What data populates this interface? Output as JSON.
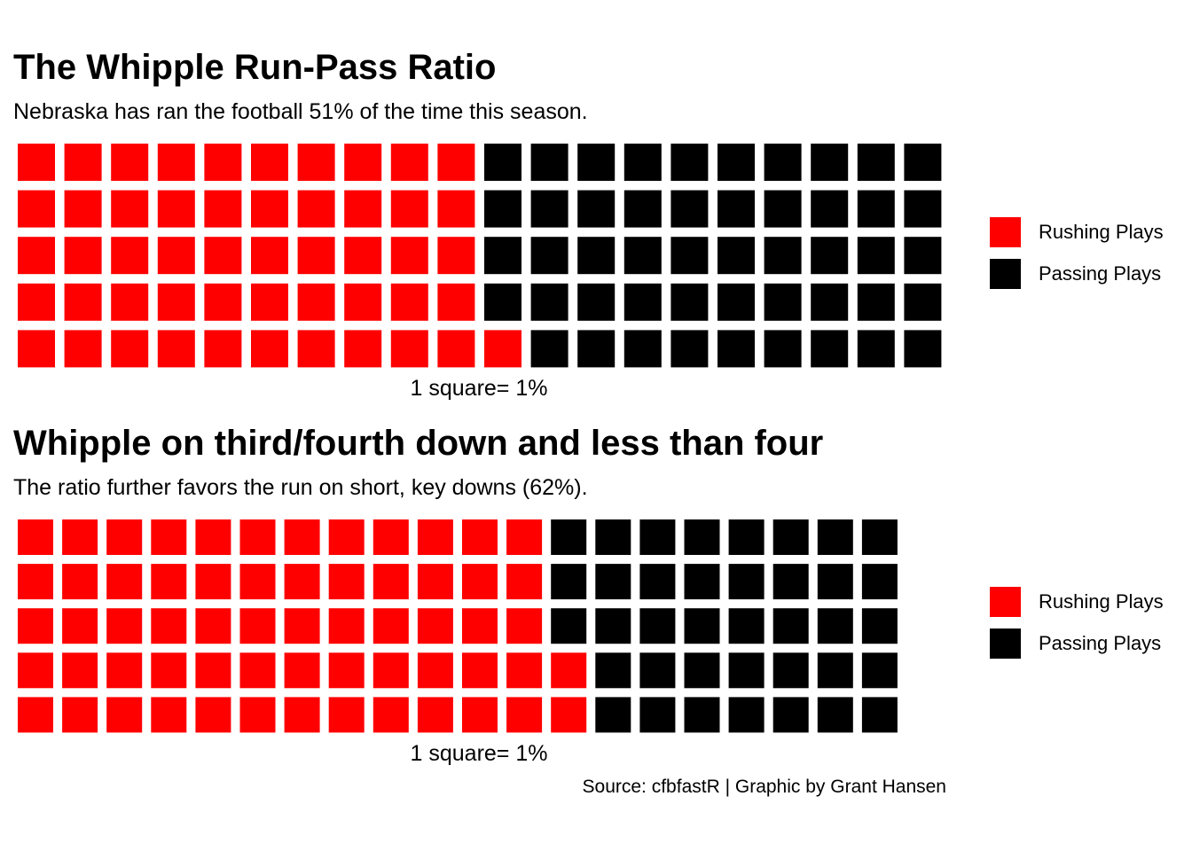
{
  "chart_data": [
    {
      "type": "waffle",
      "title": "The Whipple Run-Pass Ratio",
      "subtitle": "Nebraska has ran the football 51% of the time this season.",
      "caption": "1 square= 1%",
      "series": [
        {
          "name": "Rushing Plays",
          "value": 51,
          "color": "#FF0000"
        },
        {
          "name": "Passing Plays",
          "value": 49,
          "color": "#000000"
        }
      ],
      "grid": {
        "rows": 5,
        "columns": 20,
        "fill_order": "column-major, bottom-to-top"
      }
    },
    {
      "type": "waffle",
      "title": "Whipple on third/fourth down and less than four",
      "subtitle": "The ratio further favors the run on short, key downs (62%).",
      "caption": "1 square= 1%",
      "series": [
        {
          "name": "Rushing Plays",
          "value": 62,
          "color": "#FF0000"
        },
        {
          "name": "Passing Plays",
          "value": 38,
          "color": "#000000"
        }
      ],
      "grid": {
        "rows": 5,
        "columns": 20,
        "fill_order": "column-major, bottom-to-top"
      }
    }
  ],
  "source": "Source: cfbfastR | Graphic by Grant Hansen"
}
